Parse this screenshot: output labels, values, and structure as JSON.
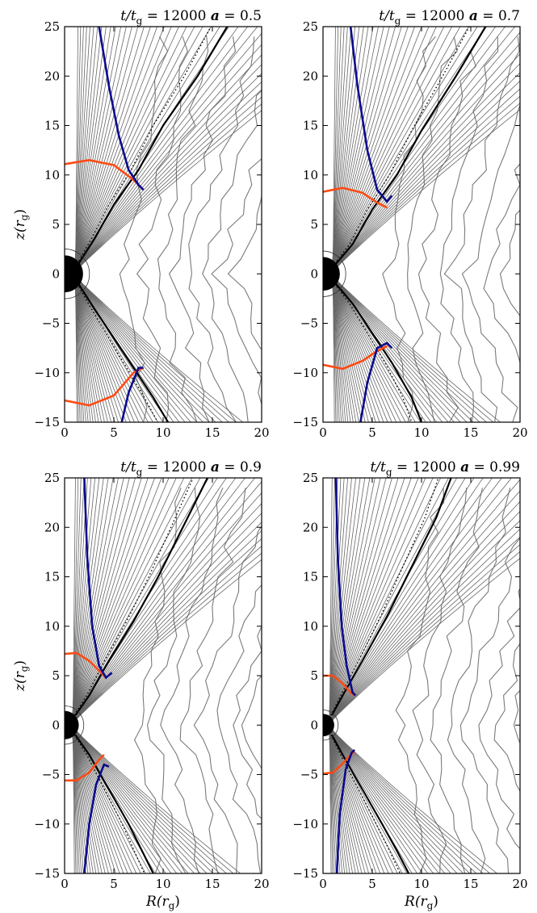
{
  "colors": {
    "field_lines": "#666666",
    "contours": "#7a7a7a",
    "black_line": "#000000",
    "blue_curve": "#0a0a8c",
    "orange_curve": "#ff4a12",
    "black_hole": "#000000"
  },
  "chart_data": [
    {
      "type": "line",
      "title": "t/t_g = 12000   a = 0.5",
      "title_parts": {
        "time": "t/t",
        "time_sub": "g",
        "time_value": "= 12000",
        "spin_label": "a",
        "spin_value": "= 0.5"
      },
      "xlabel": "",
      "ylabel": "z(r_g)",
      "xlim": [
        0,
        20
      ],
      "ylim": [
        -15,
        25
      ],
      "xticks": [
        "0",
        "5",
        "10",
        "15",
        "20"
      ],
      "yticks": [
        "−15",
        "−10",
        "−5",
        "0",
        "5",
        "10",
        "15",
        "20",
        "25"
      ],
      "grid": false,
      "spin": 0.5,
      "horizon_radius": 1.87,
      "jet_boundary": {
        "upper_x": [
          1.4,
          3,
          5,
          7.5,
          10,
          13.5,
          16.5
        ],
        "upper_z": [
          1,
          3.5,
          7,
          10.5,
          15,
          20,
          25
        ],
        "lower_x": [
          1.4,
          3,
          5,
          7,
          9,
          10.5
        ],
        "lower_z": [
          -1,
          -3.5,
          -6.5,
          -9.5,
          -12.5,
          -15
        ]
      },
      "blue_curve": {
        "upper_x": [
          3.5,
          4.5,
          5.5,
          6.5,
          7.5,
          8
        ],
        "upper_z": [
          25,
          19,
          14,
          10.5,
          9,
          8.5
        ],
        "lower_x": [
          5.8,
          6.5,
          7.5,
          8
        ],
        "lower_z": [
          -15,
          -12,
          -9.5,
          -9.5
        ]
      },
      "orange_curve": {
        "upper_x": [
          0,
          2.5,
          5,
          7,
          8
        ],
        "upper_z": [
          11.1,
          11.5,
          11,
          9.5,
          8.5
        ],
        "lower_x": [
          0,
          2.5,
          5,
          7,
          8
        ],
        "lower_z": [
          -12.8,
          -13.3,
          -12.3,
          -10,
          -9.5
        ]
      }
    },
    {
      "type": "line",
      "title": "t/t_g = 12000   a = 0.7",
      "title_parts": {
        "time": "t/t",
        "time_sub": "g",
        "time_value": "= 12000",
        "spin_label": "a",
        "spin_value": "= 0.7"
      },
      "xlabel": "",
      "ylabel": "",
      "xlim": [
        0,
        20
      ],
      "ylim": [
        -15,
        25
      ],
      "xticks": [
        "0",
        "5",
        "10",
        "15",
        "20"
      ],
      "yticks": [
        "−15",
        "−10",
        "−5",
        "0",
        "5",
        "10",
        "15",
        "20",
        "25"
      ],
      "grid": false,
      "spin": 0.7,
      "horizon_radius": 1.71,
      "jet_boundary": {
        "upper_x": [
          1.3,
          3,
          5,
          7.5,
          10,
          13.5,
          16.5
        ],
        "upper_z": [
          1,
          3,
          6.5,
          10,
          14.5,
          20,
          25
        ],
        "lower_x": [
          1.3,
          3,
          5,
          7,
          9,
          10
        ],
        "lower_z": [
          -1,
          -3,
          -6,
          -9,
          -12.5,
          -15
        ]
      },
      "blue_curve": {
        "upper_x": [
          2.8,
          3.5,
          4.5,
          5.5,
          6.5,
          7
        ],
        "upper_z": [
          25,
          19,
          12.5,
          8.5,
          7.3,
          7.9
        ],
        "lower_x": [
          3.8,
          4.5,
          5.5,
          6.5,
          7
        ],
        "lower_z": [
          -15,
          -11,
          -7.5,
          -7,
          -7.5
        ]
      },
      "orange_curve": {
        "upper_x": [
          0,
          2,
          4,
          5.5,
          6.5
        ],
        "upper_z": [
          8.3,
          8.7,
          8.2,
          7.2,
          6.7
        ],
        "lower_x": [
          0,
          2,
          4,
          5.5,
          6.5
        ],
        "lower_z": [
          -9.2,
          -9.6,
          -8.8,
          -7.8,
          -7.3
        ]
      }
    },
    {
      "type": "line",
      "title": "t/t_g = 12000   a = 0.9",
      "title_parts": {
        "time": "t/t",
        "time_sub": "g",
        "time_value": "= 12000",
        "spin_label": "a",
        "spin_value": "= 0.9"
      },
      "xlabel": "R(r_g)",
      "ylabel": "z(r_g)",
      "xlim": [
        0,
        20
      ],
      "ylim": [
        -15,
        25
      ],
      "xticks": [
        "0",
        "5",
        "10",
        "15",
        "20"
      ],
      "yticks": [
        "−15",
        "−10",
        "−5",
        "0",
        "5",
        "10",
        "15",
        "20",
        "25"
      ],
      "grid": false,
      "spin": 0.9,
      "horizon_radius": 1.44,
      "jet_boundary": {
        "upper_x": [
          1.1,
          2.5,
          4.5,
          7,
          9.5,
          12,
          14.5
        ],
        "upper_z": [
          1,
          3,
          6.5,
          10.5,
          15,
          20,
          25
        ],
        "lower_x": [
          1.1,
          2.5,
          4.5,
          6.5,
          8,
          9
        ],
        "lower_z": [
          -1,
          -3,
          -6.5,
          -10,
          -13,
          -15
        ]
      },
      "blue_curve": {
        "upper_x": [
          2,
          2.3,
          2.8,
          3.5,
          4.2,
          4.8
        ],
        "upper_z": [
          25,
          17,
          10,
          6,
          4.8,
          5.3
        ],
        "lower_x": [
          2,
          2.5,
          3.2,
          4,
          4.5
        ],
        "lower_z": [
          -15,
          -10,
          -6,
          -4,
          -4.2
        ]
      },
      "orange_curve": {
        "upper_x": [
          0,
          1.2,
          2.5,
          3.5,
          4.2
        ],
        "upper_z": [
          7.2,
          7.3,
          6.5,
          5.5,
          4.8
        ],
        "lower_x": [
          0,
          1.2,
          2.5,
          3.5,
          4
        ],
        "lower_z": [
          -5.6,
          -5.6,
          -4.8,
          -3.5,
          -3
        ]
      }
    },
    {
      "type": "line",
      "title": "t/t_g = 12000   a = 0.99",
      "title_parts": {
        "time": "t/t",
        "time_sub": "g",
        "time_value": "= 12000",
        "spin_label": "a",
        "spin_value": "= 0.99"
      },
      "xlabel": "R(r_g)",
      "ylabel": "",
      "xlim": [
        0,
        20
      ],
      "ylim": [
        -15,
        25
      ],
      "xticks": [
        "0",
        "5",
        "10",
        "15",
        "20"
      ],
      "yticks": [
        "−15",
        "−10",
        "−5",
        "0",
        "5",
        "10",
        "15",
        "20",
        "25"
      ],
      "grid": false,
      "spin": 0.99,
      "horizon_radius": 1.14,
      "jet_boundary": {
        "upper_x": [
          0.9,
          2,
          4,
          6.5,
          9,
          11.5,
          13
        ],
        "upper_z": [
          1,
          3,
          6.5,
          11,
          16,
          21,
          25
        ],
        "lower_x": [
          0.9,
          2,
          4,
          6,
          7.5,
          8.7
        ],
        "lower_z": [
          -1,
          -3,
          -6.5,
          -10,
          -12.7,
          -15
        ]
      },
      "blue_curve": {
        "upper_x": [
          1.3,
          1.5,
          1.9,
          2.4,
          3,
          3.3
        ],
        "upper_z": [
          25,
          17,
          10,
          6,
          3.3,
          3
        ],
        "lower_x": [
          1.4,
          1.7,
          2.3,
          2.9,
          3.2
        ],
        "lower_z": [
          -15,
          -9,
          -4.5,
          -2.8,
          -2.5
        ]
      },
      "orange_curve": {
        "upper_x": [
          0,
          1,
          2,
          2.8,
          3.2
        ],
        "upper_z": [
          5,
          5,
          4.2,
          3.3,
          3
        ],
        "lower_x": [
          0,
          1,
          2,
          2.8,
          3.2
        ],
        "lower_z": [
          -4.9,
          -4.8,
          -3.9,
          -3,
          -2.7
        ]
      }
    }
  ]
}
